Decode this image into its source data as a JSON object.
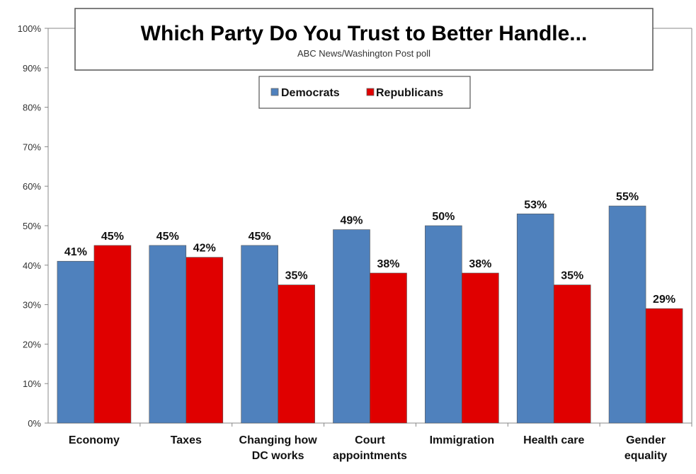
{
  "chart_data": {
    "type": "bar",
    "title": "Which Party Do You Trust to Better Handle...",
    "subtitle": "ABC News/Washington  Post poll",
    "categories": [
      [
        "Economy"
      ],
      [
        "Taxes"
      ],
      [
        "Changing how",
        "DC works"
      ],
      [
        "Court",
        "appointments"
      ],
      [
        "Immigration"
      ],
      [
        "Health care"
      ],
      [
        "Gender",
        "equality"
      ]
    ],
    "series": [
      {
        "name": "Democrats",
        "color": "#4F81BD",
        "values": [
          41,
          45,
          45,
          49,
          50,
          53,
          55
        ]
      },
      {
        "name": "Republicans",
        "color": "#E00000",
        "values": [
          45,
          42,
          35,
          38,
          38,
          35,
          29
        ]
      }
    ],
    "ylim": [
      0,
      100
    ],
    "yticks": [
      "0%",
      "10%",
      "20%",
      "30%",
      "40%",
      "50%",
      "60%",
      "70%",
      "80%",
      "90%",
      "100%"
    ],
    "value_suffix": "%",
    "legend": "top-center",
    "grid": false
  }
}
